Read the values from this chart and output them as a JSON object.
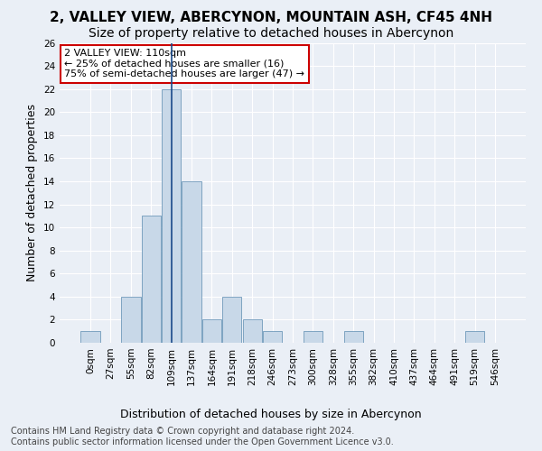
{
  "title": "2, VALLEY VIEW, ABERCYNON, MOUNTAIN ASH, CF45 4NH",
  "subtitle": "Size of property relative to detached houses in Abercynon",
  "xlabel": "Distribution of detached houses by size in Abercynon",
  "ylabel": "Number of detached properties",
  "bin_labels": [
    "0sqm",
    "27sqm",
    "55sqm",
    "82sqm",
    "109sqm",
    "137sqm",
    "164sqm",
    "191sqm",
    "218sqm",
    "246sqm",
    "273sqm",
    "300sqm",
    "328sqm",
    "355sqm",
    "382sqm",
    "410sqm",
    "437sqm",
    "464sqm",
    "491sqm",
    "519sqm",
    "546sqm"
  ],
  "bar_heights": [
    1,
    0,
    4,
    11,
    22,
    14,
    2,
    4,
    2,
    1,
    0,
    1,
    0,
    1,
    0,
    0,
    0,
    0,
    0,
    1,
    0
  ],
  "bar_color": "#c8d8e8",
  "bar_edge_color": "#5a8ab0",
  "highlight_bar_index": 4,
  "highlight_line_color": "#1a4a8a",
  "ylim": [
    0,
    26
  ],
  "yticks": [
    0,
    2,
    4,
    6,
    8,
    10,
    12,
    14,
    16,
    18,
    20,
    22,
    24,
    26
  ],
  "annotation_text_line1": "2 VALLEY VIEW: 110sqm",
  "annotation_text_line2": "← 25% of detached houses are smaller (16)",
  "annotation_text_line3": "75% of semi-detached houses are larger (47) →",
  "annotation_box_color": "#ffffff",
  "annotation_box_edge_color": "#cc0000",
  "footer_line1": "Contains HM Land Registry data © Crown copyright and database right 2024.",
  "footer_line2": "Contains public sector information licensed under the Open Government Licence v3.0.",
  "background_color": "#eaeff6",
  "plot_bg_color": "#eaeff6",
  "grid_color": "#ffffff",
  "title_fontsize": 11,
  "subtitle_fontsize": 10,
  "xlabel_fontsize": 9,
  "ylabel_fontsize": 9,
  "tick_fontsize": 7.5,
  "annotation_fontsize": 8,
  "footer_fontsize": 7
}
